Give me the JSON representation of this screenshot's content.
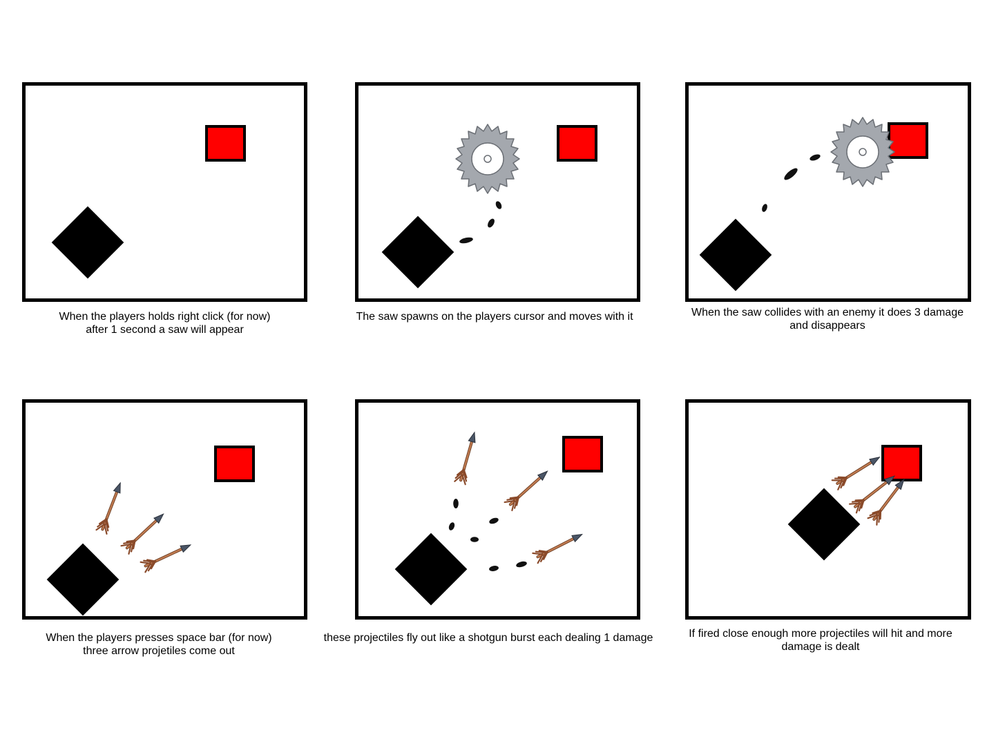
{
  "colors": {
    "player": "#000000",
    "enemy": "#ff0000",
    "saw": "#a4a8ae",
    "arrow_shaft": "#c07a50",
    "arrow_head": "#4a5566"
  },
  "icons": [
    "player-diamond",
    "enemy-square",
    "saw-blade-icon",
    "arrow-projectile-icon",
    "motion-trail"
  ],
  "panels": [
    {
      "caption_line1": "When the players holds right click (for now)",
      "caption_line2": "after 1 second a saw will appear"
    },
    {
      "caption_line1": "The saw spawns on the players cursor and moves with it",
      "caption_line2": ""
    },
    {
      "caption_line1": "When the saw collides with an enemy it does 3 damage",
      "caption_line2": "and disappears"
    },
    {
      "caption_line1": "When the players presses space bar (for now)",
      "caption_line2": "three arrow projetiles come out"
    },
    {
      "caption_line1": "these projectiles fly out like a shotgun burst each dealing 1 damage",
      "caption_line2": ""
    },
    {
      "caption_line1": "If fired close enough more projectiles will hit and more",
      "caption_line2": "damage is dealt"
    }
  ]
}
